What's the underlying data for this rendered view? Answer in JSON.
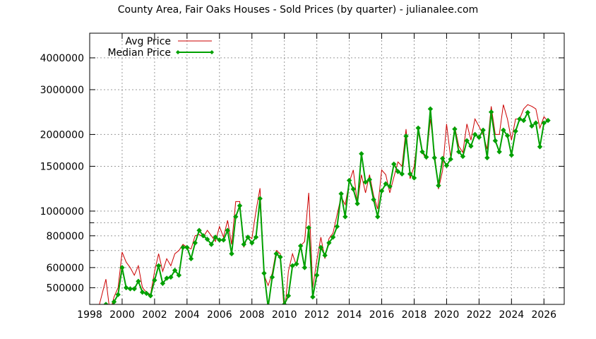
{
  "chart_data": {
    "type": "line",
    "title": "County Area, Fair Oaks Houses - Sold Prices (by quarter) - julianalee.com",
    "xlabel": "",
    "ylabel": "",
    "x_ticks": [
      "1998",
      "2000",
      "2002",
      "2004",
      "2006",
      "2008",
      "2010",
      "2012",
      "2014",
      "2016",
      "2018",
      "2020",
      "2022",
      "2024",
      "2026"
    ],
    "y_ticks": [
      {
        "value": 500000,
        "label": "500000"
      },
      {
        "value": 600000,
        "label": "600000"
      },
      {
        "value": 800000,
        "label": "800000"
      },
      {
        "value": 1000000,
        "label": "1000000"
      },
      {
        "value": 1500000,
        "label": "1500000"
      },
      {
        "value": 2000000,
        "label": "2000000"
      },
      {
        "value": 3000000,
        "label": "3000000"
      },
      {
        "value": 4000000,
        "label": "4000000"
      }
    ],
    "xlim": [
      1998,
      2027.25
    ],
    "ylim": [
      430000,
      5000000
    ],
    "y_scale": "log",
    "grid": true,
    "legend_position": "top-left",
    "series": [
      {
        "name": "Avg Price",
        "color": "#cc0000",
        "markers": false,
        "x": [
          1998.6,
          1999.0,
          1999.25,
          1999.5,
          1999.75,
          2000.0,
          2000.25,
          2000.5,
          2000.75,
          2001.0,
          2001.25,
          2001.5,
          2001.75,
          2002.0,
          2002.25,
          2002.5,
          2002.75,
          2003.0,
          2003.25,
          2003.5,
          2003.75,
          2004.0,
          2004.25,
          2004.5,
          2004.75,
          2005.0,
          2005.25,
          2005.5,
          2005.75,
          2006.0,
          2006.25,
          2006.5,
          2006.75,
          2007.0,
          2007.25,
          2007.5,
          2007.75,
          2008.0,
          2008.25,
          2008.5,
          2008.75,
          2009.0,
          2009.25,
          2009.5,
          2009.75,
          2010.0,
          2010.25,
          2010.5,
          2010.75,
          2011.0,
          2011.25,
          2011.5,
          2011.75,
          2012.0,
          2012.25,
          2012.5,
          2012.75,
          2013.0,
          2013.25,
          2013.5,
          2013.75,
          2014.0,
          2014.25,
          2014.5,
          2014.75,
          2015.0,
          2015.25,
          2015.5,
          2015.75,
          2016.0,
          2016.25,
          2016.5,
          2016.75,
          2017.0,
          2017.25,
          2017.5,
          2017.75,
          2018.0,
          2018.25,
          2018.5,
          2018.75,
          2019.0,
          2019.25,
          2019.5,
          2019.75,
          2020.0,
          2020.25,
          2020.5,
          2020.75,
          2021.0,
          2021.25,
          2021.5,
          2021.75,
          2022.0,
          2022.25,
          2022.5,
          2022.75,
          2023.0,
          2023.25,
          2023.5,
          2023.75,
          2024.0,
          2024.25,
          2024.5,
          2024.75,
          2025.0,
          2025.25,
          2025.5,
          2025.75,
          2026.0,
          2026.25
        ],
        "y": [
          430000,
          540000,
          400000,
          460000,
          500000,
          690000,
          630000,
          600000,
          560000,
          610000,
          500000,
          480000,
          470000,
          580000,
          680000,
          580000,
          650000,
          610000,
          680000,
          700000,
          740000,
          720000,
          710000,
          800000,
          810000,
          790000,
          840000,
          800000,
          760000,
          870000,
          790000,
          920000,
          740000,
          1090000,
          1090000,
          720000,
          800000,
          780000,
          1000000,
          1230000,
          560000,
          510000,
          570000,
          700000,
          680000,
          390000,
          580000,
          680000,
          610000,
          730000,
          760000,
          1180000,
          500000,
          640000,
          790000,
          650000,
          780000,
          820000,
          970000,
          1140000,
          1060000,
          1300000,
          1450000,
          1070000,
          1390000,
          1180000,
          1390000,
          1150000,
          1020000,
          1450000,
          1390000,
          1180000,
          1360000,
          1560000,
          1500000,
          2100000,
          1340000,
          1500000,
          2050000,
          1700000,
          1600000,
          2300000,
          1700000,
          1220000,
          1440000,
          2200000,
          1620000,
          2150000,
          1800000,
          1700000,
          2200000,
          1900000,
          2300000,
          2150000,
          2000000,
          1750000,
          2580000,
          2000000,
          2000000,
          2620000,
          2300000,
          1900000,
          2300000,
          2300000,
          2520000,
          2620000,
          2580000,
          2520000,
          2120000,
          2350000,
          2250000
        ]
      },
      {
        "name": "Median Price",
        "color": "#00a000",
        "markers": true,
        "x": [
          1999.0,
          1999.25,
          1999.5,
          1999.75,
          2000.0,
          2000.25,
          2000.5,
          2000.75,
          2001.0,
          2001.25,
          2001.5,
          2001.75,
          2002.0,
          2002.25,
          2002.5,
          2002.75,
          2003.0,
          2003.25,
          2003.5,
          2003.75,
          2004.0,
          2004.25,
          2004.5,
          2004.75,
          2005.0,
          2005.25,
          2005.5,
          2005.75,
          2006.0,
          2006.25,
          2006.5,
          2006.75,
          2007.0,
          2007.25,
          2007.5,
          2007.75,
          2008.0,
          2008.25,
          2008.5,
          2008.75,
          2009.0,
          2009.25,
          2009.5,
          2009.75,
          2010.0,
          2010.25,
          2010.5,
          2010.75,
          2011.0,
          2011.25,
          2011.5,
          2011.75,
          2012.0,
          2012.25,
          2012.5,
          2012.75,
          2013.0,
          2013.25,
          2013.5,
          2013.75,
          2014.0,
          2014.25,
          2014.5,
          2014.75,
          2015.0,
          2015.25,
          2015.5,
          2015.75,
          2016.0,
          2016.25,
          2016.5,
          2016.75,
          2017.0,
          2017.25,
          2017.5,
          2017.75,
          2018.0,
          2018.25,
          2018.5,
          2018.75,
          2019.0,
          2019.25,
          2019.5,
          2019.75,
          2020.0,
          2020.25,
          2020.5,
          2020.75,
          2021.0,
          2021.25,
          2021.5,
          2021.75,
          2022.0,
          2022.25,
          2022.5,
          2022.75,
          2023.0,
          2023.25,
          2023.5,
          2023.75,
          2024.0,
          2024.25,
          2024.5,
          2024.75,
          2025.0,
          2025.25,
          2025.5,
          2025.75,
          2026.0,
          2026.25
        ],
        "y": [
          430000,
          400000,
          440000,
          470000,
          600000,
          500000,
          495000,
          495000,
          530000,
          480000,
          475000,
          465000,
          535000,
          610000,
          520000,
          545000,
          550000,
          585000,
          560000,
          720000,
          720000,
          650000,
          750000,
          840000,
          800000,
          775000,
          740000,
          790000,
          770000,
          770000,
          840000,
          680000,
          950000,
          1050000,
          740000,
          790000,
          750000,
          790000,
          1120000,
          570000,
          420000,
          550000,
          680000,
          660000,
          430000,
          465000,
          610000,
          620000,
          730000,
          600000,
          860000,
          460000,
          560000,
          720000,
          670000,
          750000,
          790000,
          870000,
          1170000,
          950000,
          1320000,
          1220000,
          1070000,
          1680000,
          1300000,
          1330000,
          1110000,
          950000,
          1200000,
          1280000,
          1250000,
          1530000,
          1430000,
          1400000,
          1970000,
          1400000,
          1350000,
          2120000,
          1710000,
          1630000,
          2520000,
          1620000,
          1260000,
          1610000,
          1510000,
          1600000,
          2100000,
          1710000,
          1640000,
          1890000,
          1800000,
          2000000,
          1950000,
          2080000,
          1620000,
          2450000,
          1890000,
          1710000,
          2080000,
          1980000,
          1660000,
          2060000,
          2300000,
          2270000,
          2440000,
          2160000,
          2220000,
          1790000,
          2220000,
          2270000
        ]
      }
    ]
  }
}
